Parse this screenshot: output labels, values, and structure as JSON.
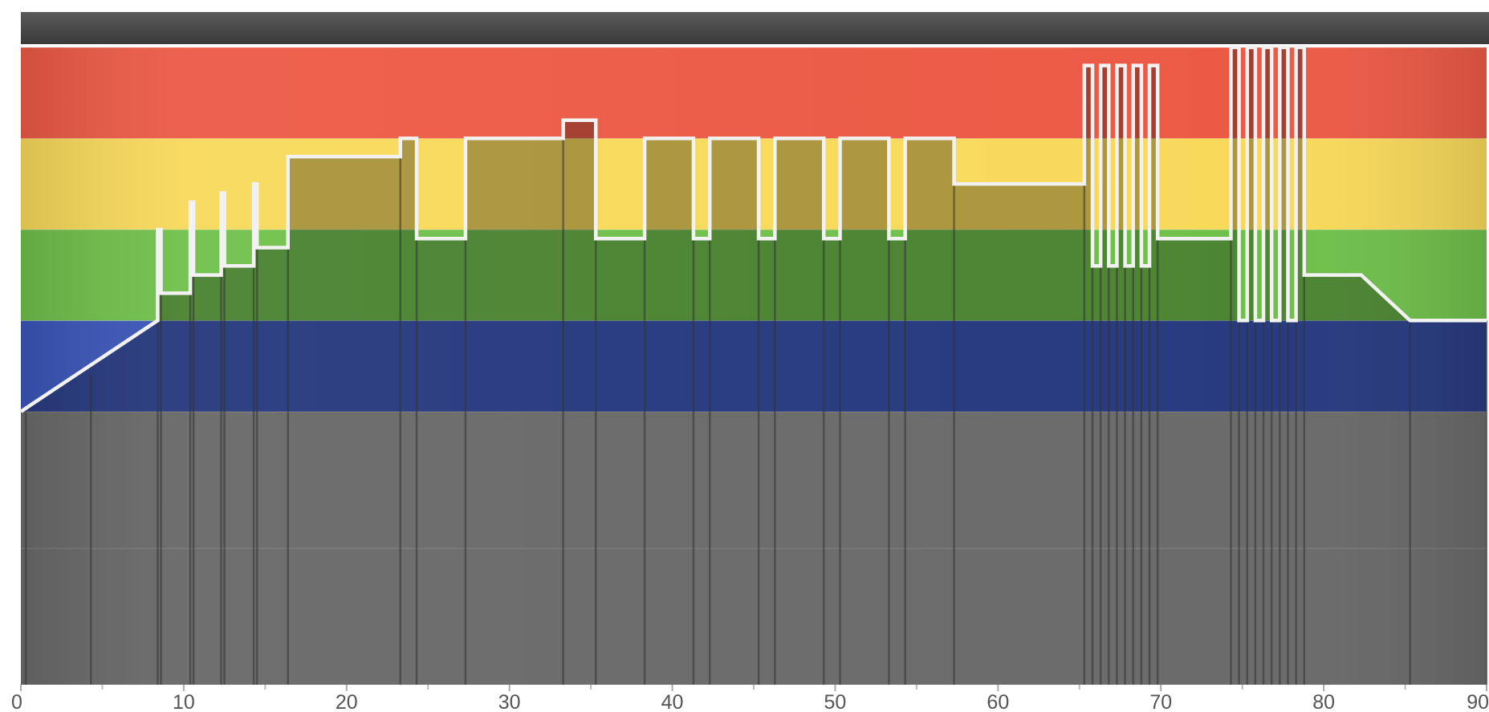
{
  "chart_data": {
    "type": "area",
    "title": "",
    "xlabel": "",
    "ylabel": "",
    "xlim": [
      0,
      90
    ],
    "ylim": [
      0,
      6
    ],
    "x_ticks": [
      "0",
      "10",
      "20",
      "30",
      "40",
      "50",
      "60",
      "70",
      "80",
      "90"
    ],
    "x_minor_ticks": [
      5,
      15,
      25,
      35,
      45,
      55,
      65,
      75,
      85
    ],
    "grid": true,
    "zones": [
      {
        "from": 0,
        "to": 1.5,
        "color": "#9a9a9a"
      },
      {
        "from": 1.5,
        "to": 3,
        "color": "#9a9a9a"
      },
      {
        "from": 3,
        "to": 4,
        "color": "#3a55b8"
      },
      {
        "from": 4,
        "to": 5,
        "color": "#6fc04a"
      },
      {
        "from": 5,
        "to": 6,
        "color": "#f8d95a"
      },
      {
        "from": 6,
        "to": 7,
        "color": "#ec5a45"
      }
    ],
    "series": [
      {
        "points": [
          [
            0.0,
            3.0
          ],
          [
            8.4,
            4.0
          ],
          [
            8.4,
            5.0
          ],
          [
            8.6,
            5.0
          ],
          [
            8.6,
            4.3
          ],
          [
            10.4,
            4.3
          ],
          [
            10.4,
            5.3
          ],
          [
            10.6,
            5.3
          ],
          [
            10.6,
            4.5
          ],
          [
            12.3,
            4.5
          ],
          [
            12.3,
            5.4
          ],
          [
            12.5,
            5.4
          ],
          [
            12.5,
            4.6
          ],
          [
            14.3,
            4.6
          ],
          [
            14.3,
            5.5
          ],
          [
            14.5,
            5.5
          ],
          [
            14.5,
            4.8
          ],
          [
            16.4,
            4.8
          ],
          [
            16.4,
            5.8
          ],
          [
            23.3,
            5.8
          ],
          [
            23.3,
            6.0
          ],
          [
            24.3,
            6.0
          ],
          [
            24.3,
            4.9
          ],
          [
            27.3,
            4.9
          ],
          [
            27.3,
            6.0
          ],
          [
            33.3,
            6.0
          ],
          [
            33.3,
            6.2
          ],
          [
            35.3,
            6.2
          ],
          [
            35.3,
            4.9
          ],
          [
            38.3,
            4.9
          ],
          [
            38.3,
            6.0
          ],
          [
            41.3,
            6.0
          ],
          [
            41.3,
            4.9
          ],
          [
            42.3,
            4.9
          ],
          [
            42.3,
            6.0
          ],
          [
            45.3,
            6.0
          ],
          [
            45.3,
            4.9
          ],
          [
            46.3,
            4.9
          ],
          [
            46.3,
            6.0
          ],
          [
            49.3,
            6.0
          ],
          [
            49.3,
            4.9
          ],
          [
            50.3,
            4.9
          ],
          [
            50.3,
            6.0
          ],
          [
            53.3,
            6.0
          ],
          [
            53.3,
            4.9
          ],
          [
            54.3,
            4.9
          ],
          [
            54.3,
            6.0
          ],
          [
            57.3,
            6.0
          ],
          [
            57.3,
            5.5
          ],
          [
            65.3,
            5.5
          ],
          [
            65.3,
            6.8
          ],
          [
            65.8,
            6.8
          ],
          [
            65.8,
            4.6
          ],
          [
            66.3,
            4.6
          ],
          [
            66.3,
            6.8
          ],
          [
            66.8,
            6.8
          ],
          [
            66.8,
            4.6
          ],
          [
            67.3,
            4.6
          ],
          [
            67.3,
            6.8
          ],
          [
            67.8,
            6.8
          ],
          [
            67.8,
            4.6
          ],
          [
            68.3,
            4.6
          ],
          [
            68.3,
            6.8
          ],
          [
            68.8,
            6.8
          ],
          [
            68.8,
            4.6
          ],
          [
            69.3,
            4.6
          ],
          [
            69.3,
            6.8
          ],
          [
            69.8,
            6.8
          ],
          [
            69.8,
            4.9
          ],
          [
            74.3,
            4.9
          ],
          [
            74.3,
            7.0
          ],
          [
            74.8,
            7.0
          ],
          [
            74.8,
            4.0
          ],
          [
            75.3,
            4.0
          ],
          [
            75.3,
            7.0
          ],
          [
            75.8,
            7.0
          ],
          [
            75.8,
            4.0
          ],
          [
            76.3,
            4.0
          ],
          [
            76.3,
            7.0
          ],
          [
            76.8,
            7.0
          ],
          [
            76.8,
            4.0
          ],
          [
            77.3,
            4.0
          ],
          [
            77.3,
            7.0
          ],
          [
            77.8,
            7.0
          ],
          [
            77.8,
            4.0
          ],
          [
            78.3,
            4.0
          ],
          [
            78.3,
            7.0
          ],
          [
            78.8,
            7.0
          ],
          [
            78.8,
            4.5
          ],
          [
            82.3,
            4.5
          ],
          [
            85.3,
            4.0
          ],
          [
            90.0,
            4.0
          ]
        ]
      }
    ]
  }
}
